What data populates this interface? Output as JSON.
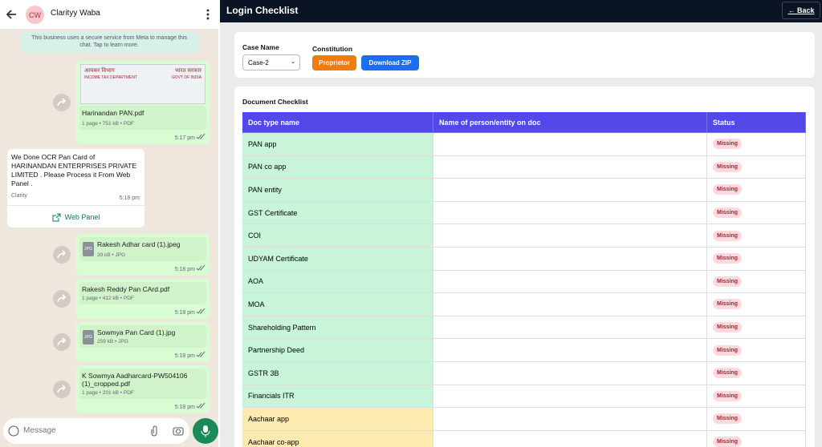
{
  "chat": {
    "header": {
      "avatar": "CW",
      "name": "Clarityy Waba"
    },
    "notice": "This business uses a secure service from Meta to manage this chat. Tap to learn more.",
    "messages": [
      {
        "dir": "out",
        "preview": {
          "hi_left": "आयकर विभाग",
          "en_left": "INCOME TAX DEPARTMENT",
          "hi_right": "भारत सरकार",
          "en_right": "GOVT OF INDIA"
        },
        "file": "Harinandan PAN.pdf",
        "meta": "1 page • 751 kB • PDF",
        "time": "5:17 pm"
      },
      {
        "dir": "in",
        "text": "We Done OCR Pan Card of HARINANDAN ENTERPRISES PRIVATE LIMITED . Please Process it From Web Panel .",
        "sender": "Clarity",
        "time": "5:18 pm",
        "button": "Web Panel"
      },
      {
        "dir": "out",
        "icon": "JPG",
        "file": "Rakesh Adhar card (1).jpeg",
        "meta": "39 kB • JPG",
        "time": "5:18 pm"
      },
      {
        "dir": "out",
        "file": "Rakesh Reddy Pan CArd.pdf",
        "meta": "1 page • 412 kB • PDF",
        "time": "5:18 pm"
      },
      {
        "dir": "out",
        "icon": "JPG",
        "file": "Sowmya Pan Card (1).jpg",
        "meta": "259 kB • JPG",
        "time": "5:18 pm"
      },
      {
        "dir": "out",
        "file": "K Sowmya Aadharcard-PW504106 (1)_cropped.pdf",
        "meta": "1 page • 201 kB • PDF",
        "time": "5:18 pm"
      }
    ],
    "input_placeholder": "Message"
  },
  "panel": {
    "title": "Login Checklist",
    "back": "← Back",
    "case_label": "Case Name",
    "case_value": "Case-2",
    "constitution_label": "Constitution",
    "constitution_button": "Proprietor",
    "download_button": "Download ZIP",
    "checklist_title": "Document Checklist",
    "table": {
      "headers": [
        "Doc type name",
        "Name of person/entity on doc",
        "Status"
      ],
      "rows": [
        {
          "doc": "PAN app",
          "status": "Missing",
          "color": "#c8f5d9"
        },
        {
          "doc": "PAN co app",
          "status": "Missing",
          "color": "#c8f5d9"
        },
        {
          "doc": "PAN entity",
          "status": "Missing",
          "color": "#c8f5d9"
        },
        {
          "doc": "GST Certificate",
          "status": "Missing",
          "color": "#c8f5d9"
        },
        {
          "doc": "COI",
          "status": "Missing",
          "color": "#c8f5d9"
        },
        {
          "doc": "UDYAM Certificate",
          "status": "Missing",
          "color": "#c8f5d9"
        },
        {
          "doc": "AOA",
          "status": "Missing",
          "color": "#c8f5d9"
        },
        {
          "doc": "MOA",
          "status": "Missing",
          "color": "#c8f5d9"
        },
        {
          "doc": "Shareholding Pattern",
          "status": "Missing",
          "color": "#c8f5d9"
        },
        {
          "doc": "Partnership Deed",
          "status": "Missing",
          "color": "#c8f5d9"
        },
        {
          "doc": "GSTR 3B",
          "status": "Missing",
          "color": "#c8f5d9"
        },
        {
          "doc": "Financials ITR",
          "status": "Missing",
          "color": "#c8f5d9"
        },
        {
          "doc": "Aachaar app",
          "status": "Missing",
          "color": "#fdeab0"
        },
        {
          "doc": "Aachaar co-app",
          "status": "Missing",
          "color": "#fdeab0"
        }
      ]
    }
  }
}
